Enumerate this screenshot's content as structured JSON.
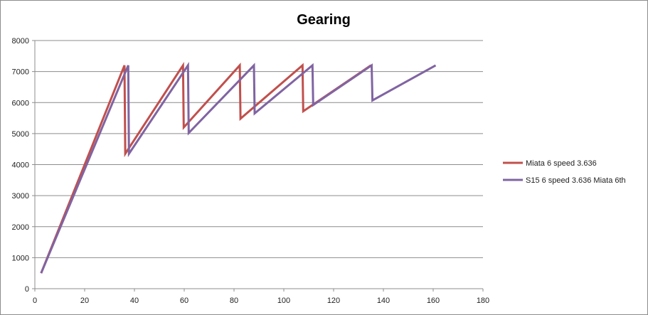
{
  "chart_data": {
    "type": "line",
    "title": "Gearing",
    "xlabel": "",
    "ylabel": "",
    "xlim": [
      0,
      180
    ],
    "ylim": [
      0,
      8000
    ],
    "x_ticks": [
      0,
      20,
      40,
      60,
      80,
      100,
      120,
      140,
      160,
      180
    ],
    "y_ticks": [
      0,
      1000,
      2000,
      3000,
      4000,
      5000,
      6000,
      7000,
      8000
    ],
    "grid": "horizontal",
    "legend_position": "right",
    "series": [
      {
        "name": "Miata 6 speed 3.636",
        "color": "#c0504d",
        "points": [
          [
            2.5,
            500
          ],
          [
            36,
            7200
          ],
          [
            36.3,
            4350
          ],
          [
            59.5,
            7200
          ],
          [
            59.8,
            5200
          ],
          [
            82.3,
            7200
          ],
          [
            82.6,
            5480
          ],
          [
            107.5,
            7200
          ],
          [
            107.8,
            5720
          ],
          [
            135,
            7200
          ]
        ]
      },
      {
        "name": "S15 6 speed 3.636 Miata 6th",
        "color": "#8064a2",
        "points": [
          [
            2.5,
            500
          ],
          [
            37.5,
            7200
          ],
          [
            37.8,
            4350
          ],
          [
            61.5,
            7200
          ],
          [
            61.8,
            5020
          ],
          [
            88,
            7200
          ],
          [
            88.3,
            5650
          ],
          [
            111.5,
            7200
          ],
          [
            111.8,
            5920
          ],
          [
            135.3,
            7200
          ],
          [
            135.6,
            6070
          ],
          [
            161,
            7200
          ]
        ]
      }
    ]
  }
}
